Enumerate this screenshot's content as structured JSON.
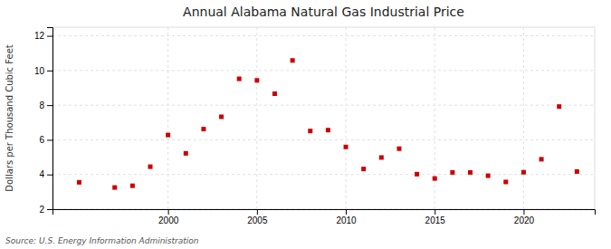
{
  "chart_data": {
    "type": "scatter",
    "title": "Annual Alabama Natural Gas Industrial Price",
    "y_label": "Dollars per Thousand Cubic Feet",
    "annotations": [
      "Source: U.S. Energy Information Administration"
    ],
    "x": [
      1995,
      1997,
      1998,
      1999,
      2000,
      2001,
      2002,
      2003,
      2004,
      2005,
      2006,
      2007,
      2008,
      2009,
      2010,
      2011,
      2012,
      2013,
      2014,
      2015,
      2016,
      2017,
      2018,
      2019,
      2020,
      2021,
      2022,
      2023
    ],
    "values": [
      3.55,
      3.25,
      3.35,
      4.45,
      6.28,
      5.22,
      6.62,
      7.33,
      9.52,
      9.43,
      8.66,
      10.58,
      6.51,
      6.56,
      5.59,
      4.32,
      4.98,
      5.49,
      4.02,
      3.77,
      4.12,
      4.12,
      3.93,
      3.57,
      4.13,
      4.88,
      7.92,
      4.17
    ],
    "color": "#cc0000",
    "marker": "square",
    "xlim": [
      1993.5,
      2024
    ],
    "ylim": [
      2,
      12.5
    ],
    "xticks": [
      2000,
      2005,
      2010,
      2015,
      2020
    ],
    "yticks": [
      2,
      4,
      6,
      8,
      10,
      12
    ],
    "grid": true
  }
}
